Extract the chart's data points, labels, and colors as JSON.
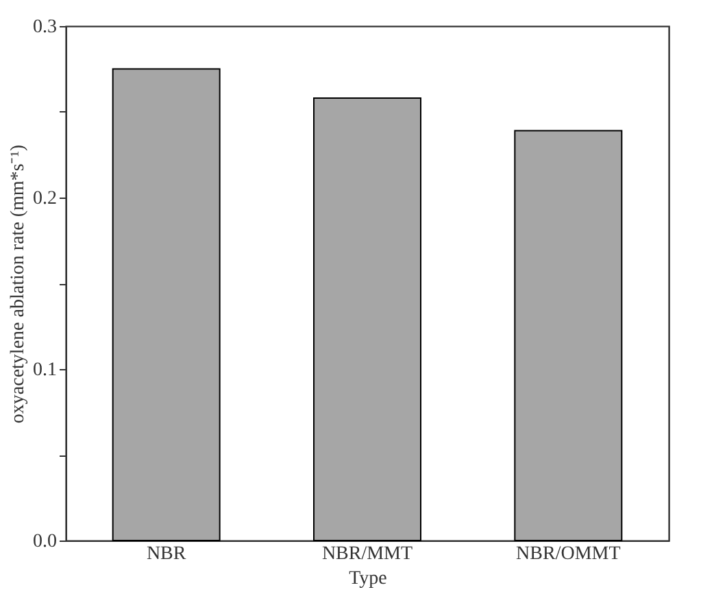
{
  "chart_data": {
    "type": "bar",
    "xlabel": "Type",
    "ylabel": "oxyacetylene ablation rate (mm*s⁻¹)",
    "categories": [
      "NBR",
      "NBR/MMT",
      "NBR/OMMT"
    ],
    "values": [
      0.275,
      0.258,
      0.239
    ],
    "color": "#a6a6a6",
    "ylim": [
      0,
      0.3
    ],
    "yticks": [
      {
        "value": 0,
        "label": "0.0"
      },
      {
        "value": 0.05,
        "label": null
      },
      {
        "value": 0.1,
        "label": "0.1"
      },
      {
        "value": 0.15,
        "label": null
      },
      {
        "value": 0.2,
        "label": "0.2"
      },
      {
        "value": 0.25,
        "label": null
      },
      {
        "value": 0.3,
        "label": "0.3"
      }
    ],
    "grid": false
  }
}
